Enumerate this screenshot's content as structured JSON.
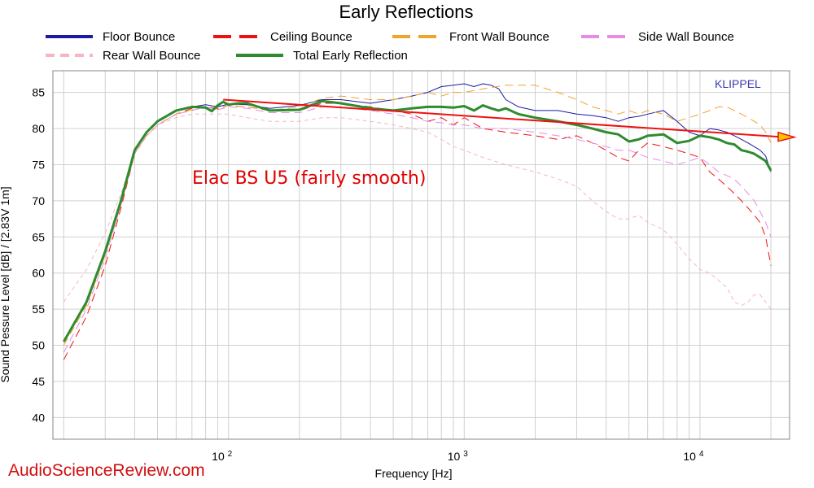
{
  "chart_data": {
    "type": "line",
    "title": "Early Reflections",
    "xlabel": "Frequency [Hz]",
    "ylabel": "Sound Pessure Level [dB]  / [2.83V 1m]",
    "x_scale": "log",
    "xlim": [
      18,
      24000
    ],
    "ylim": [
      37,
      88
    ],
    "grid": true,
    "legend_position": "top",
    "y_ticks": [
      40,
      45,
      50,
      55,
      60,
      65,
      70,
      75,
      80,
      85
    ],
    "x_tick_labels": [
      {
        "value": 100,
        "base": "10",
        "exp": "2"
      },
      {
        "value": 1000,
        "base": "10",
        "exp": "3"
      },
      {
        "value": 10000,
        "base": "10",
        "exp": "4"
      }
    ],
    "annotation": "Elac BS U5 (fairly smooth)",
    "brand": "KLIPPEL",
    "watermark": "AudioScienceReview.com",
    "trend_line": {
      "color": "#ee1111",
      "start": [
        95,
        84.0
      ],
      "end": [
        24000,
        78.8
      ]
    },
    "series": [
      {
        "name": "Floor Bounce",
        "color": "#1a1aa6",
        "dash": "solid",
        "width": 1,
        "x": [
          20,
          25,
          30,
          35,
          40,
          45,
          50,
          60,
          70,
          80,
          90,
          100,
          120,
          150,
          200,
          250,
          300,
          400,
          500,
          600,
          700,
          800,
          900,
          1000,
          1100,
          1200,
          1300,
          1400,
          1500,
          1700,
          2000,
          2500,
          3000,
          3500,
          4000,
          4500,
          5000,
          5500,
          6000,
          7000,
          8000,
          9000,
          10000,
          11000,
          12000,
          13000,
          14000,
          15000,
          16000,
          17000,
          18000,
          19000,
          20000
        ],
        "y": [
          50.5,
          56,
          63,
          70,
          77,
          79.5,
          81,
          82.5,
          83,
          83.3,
          83,
          83.4,
          83.3,
          82.8,
          83.2,
          84,
          84,
          83.5,
          84,
          84.5,
          85,
          85.8,
          86,
          86.2,
          85.8,
          86.2,
          86,
          85.5,
          84,
          83,
          82.5,
          82.5,
          82,
          81.8,
          81.5,
          81,
          81.5,
          81.7,
          82,
          82.5,
          81,
          79.5,
          79,
          80,
          79.8,
          79.5,
          79,
          78.5,
          78,
          77.5,
          77,
          76.2,
          74
        ]
      },
      {
        "name": "Ceiling Bounce",
        "color": "#ee1111",
        "dash": "10,6",
        "width": 1,
        "x": [
          20,
          25,
          30,
          35,
          40,
          45,
          50,
          60,
          70,
          80,
          90,
          100,
          120,
          150,
          200,
          250,
          300,
          400,
          500,
          600,
          700,
          800,
          900,
          1000,
          1200,
          1500,
          2000,
          2500,
          3000,
          3500,
          4000,
          4500,
          5000,
          5500,
          6000,
          7000,
          8000,
          9000,
          10000,
          11000,
          12000,
          13000,
          14000,
          15000,
          16000,
          17000,
          18000,
          19000,
          20000
        ],
        "y": [
          48,
          54,
          61,
          69,
          76.5,
          79,
          80.5,
          82,
          82.8,
          83,
          82.8,
          83.2,
          83,
          82.5,
          82.5,
          83.5,
          83.5,
          83,
          82.5,
          82,
          81,
          81.5,
          80.5,
          81.5,
          80,
          79.5,
          79,
          78.5,
          79,
          78,
          77,
          76,
          75.5,
          77,
          78,
          77.5,
          77,
          76.5,
          76,
          74,
          73,
          72,
          71,
          70,
          69,
          68,
          67,
          65,
          61
        ]
      },
      {
        "name": "Front Wall Bounce",
        "color": "#f2a32a",
        "dash": "10,6",
        "width": 1,
        "x": [
          20,
          25,
          30,
          35,
          40,
          45,
          50,
          60,
          70,
          80,
          90,
          100,
          120,
          150,
          200,
          250,
          300,
          400,
          500,
          600,
          700,
          800,
          900,
          1000,
          1200,
          1500,
          2000,
          2500,
          3000,
          3500,
          4000,
          4500,
          5000,
          5500,
          6000,
          7000,
          8000,
          9000,
          10000,
          11000,
          12000,
          13000,
          14000,
          15000,
          16000,
          17000,
          18000,
          19000,
          20000
        ],
        "y": [
          50,
          55.5,
          62.5,
          69.5,
          76.5,
          79,
          80.5,
          82,
          82.6,
          83,
          82.7,
          83.2,
          83,
          82.5,
          83,
          84.2,
          84.5,
          84,
          84,
          84.5,
          85,
          84.5,
          85,
          85,
          85.5,
          86,
          86,
          85,
          84,
          83,
          82.5,
          82,
          82.5,
          82,
          82.5,
          82,
          81,
          81.5,
          82,
          82.5,
          83,
          83,
          82.5,
          82,
          81.5,
          81,
          80.5,
          79.5,
          78
        ]
      },
      {
        "name": "Side Wall Bounce",
        "color": "#e88ae6",
        "dash": "10,6",
        "width": 1,
        "x": [
          20,
          25,
          30,
          35,
          40,
          45,
          50,
          60,
          70,
          80,
          90,
          100,
          120,
          150,
          200,
          250,
          300,
          400,
          500,
          600,
          700,
          800,
          900,
          1000,
          1200,
          1500,
          2000,
          2500,
          3000,
          3500,
          4000,
          4500,
          5000,
          5500,
          6000,
          7000,
          8000,
          9000,
          10000,
          11000,
          12000,
          13000,
          14000,
          15000,
          16000,
          17000,
          18000,
          19000,
          20000
        ],
        "y": [
          49,
          55,
          62,
          69.5,
          76.5,
          79,
          80.5,
          82,
          82.5,
          83,
          82.6,
          83,
          82.8,
          82.2,
          82.2,
          83,
          83,
          82.5,
          82,
          81.5,
          81,
          80.8,
          80.5,
          80.5,
          80,
          80,
          79.5,
          79,
          78.5,
          78,
          77.5,
          77,
          77,
          76.5,
          76,
          75.5,
          75,
          75.5,
          76,
          75,
          74,
          73.5,
          73,
          72,
          71,
          70,
          68.5,
          67,
          65
        ]
      },
      {
        "name": "Rear Wall Bounce",
        "color": "#f5b5c2",
        "dash": "5,4",
        "width": 1,
        "x": [
          20,
          25,
          30,
          35,
          40,
          45,
          50,
          60,
          70,
          80,
          90,
          100,
          120,
          150,
          200,
          250,
          300,
          400,
          500,
          600,
          700,
          800,
          900,
          1000,
          1200,
          1500,
          2000,
          2500,
          3000,
          3500,
          4000,
          4500,
          5000,
          5500,
          6000,
          7000,
          8000,
          9000,
          10000,
          11000,
          12000,
          13000,
          14000,
          15000,
          16000,
          17000,
          18000,
          19000,
          20000
        ],
        "y": [
          56,
          60.5,
          65.5,
          71,
          76.5,
          79,
          80.5,
          81.5,
          82,
          82,
          82,
          82,
          81.5,
          81,
          81,
          81.5,
          81.5,
          81,
          80.5,
          80,
          79.5,
          78.5,
          77.5,
          77,
          76,
          75,
          74,
          73,
          72,
          70,
          68.5,
          67.5,
          67.5,
          68,
          67,
          66,
          64,
          62,
          60.5,
          60,
          59,
          58,
          56,
          55.5,
          56,
          57,
          57,
          56,
          55
        ]
      },
      {
        "name": "Total Early Reflection",
        "color": "#2e8b2e",
        "dash": "solid",
        "width": 3,
        "x": [
          20,
          25,
          30,
          35,
          40,
          45,
          50,
          60,
          70,
          80,
          85,
          90,
          95,
          100,
          110,
          120,
          150,
          200,
          250,
          300,
          400,
          500,
          600,
          700,
          800,
          900,
          1000,
          1100,
          1200,
          1300,
          1400,
          1500,
          1700,
          2000,
          2500,
          3000,
          3500,
          4000,
          4500,
          5000,
          5500,
          6000,
          7000,
          8000,
          9000,
          10000,
          11000,
          12000,
          13000,
          14000,
          15000,
          16000,
          17000,
          18000,
          19000,
          20000
        ],
        "y": [
          50.5,
          56,
          63,
          70,
          77,
          79.5,
          81,
          82.5,
          83,
          82.9,
          82.4,
          83.2,
          83.7,
          83.3,
          83.5,
          83.5,
          82.5,
          82.6,
          83.8,
          83.5,
          82.8,
          82.5,
          82.8,
          83,
          83,
          82.9,
          83.1,
          82.5,
          83.2,
          82.8,
          82.5,
          82.8,
          82,
          81.5,
          81,
          80.5,
          80,
          79.5,
          79.2,
          78.2,
          78.5,
          79,
          79.2,
          78,
          78.3,
          79,
          78.8,
          78.5,
          78,
          77.8,
          77,
          76.8,
          76.5,
          76,
          75.5,
          74.2
        ]
      }
    ]
  }
}
